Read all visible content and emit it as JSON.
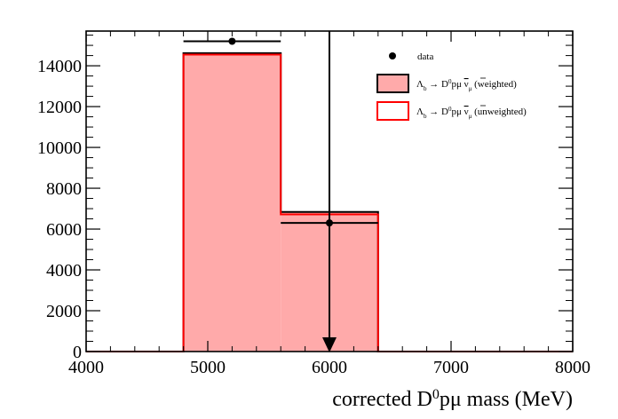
{
  "chart_data": {
    "type": "bar",
    "title": "",
    "xlabel": {
      "main": "corrected D",
      "sup": "0",
      "rest": "pμ mass (MeV)"
    },
    "ylabel": "",
    "xlim": [
      4000,
      8000
    ],
    "ylim": [
      0,
      15700
    ],
    "x_ticks": [
      "4000",
      "5000",
      "6000",
      "7000",
      "8000"
    ],
    "y_ticks": [
      "0",
      "2000",
      "4000",
      "6000",
      "8000",
      "10000",
      "12000",
      "14000"
    ],
    "bin_edges": [
      4000,
      4800,
      5600,
      6400,
      8000
    ],
    "series": [
      {
        "name": "Λ_b → D⁰pμ ν̅_μ (weighted)",
        "style": "filled-black-outline",
        "fill": "#ffaaaa",
        "edge": "#000000",
        "values": [
          0,
          14620,
          6840,
          0
        ]
      },
      {
        "name": "Λ_b → D⁰pμ ν̅_μ (unweighted)",
        "style": "red-outline",
        "edge": "#ff0000",
        "values": [
          0,
          14550,
          6720,
          0
        ]
      },
      {
        "name": "data",
        "style": "points",
        "color": "#000000",
        "points": [
          {
            "x": 5200,
            "y": 15200,
            "xerr": 400
          },
          {
            "x": 6000,
            "y": 6300,
            "xerr": 400
          }
        ]
      }
    ],
    "annotation": {
      "type": "vertical-arrow",
      "x": 6000
    },
    "grid": false,
    "legend": {
      "placement": "top-right",
      "entries": [
        {
          "kind": "marker",
          "text": "data"
        },
        {
          "kind": "box-black",
          "prefix": "Λ",
          "sub": "b",
          "mid": " → D",
          "sup": "0",
          "tail": "pμ ",
          "nu": "ν",
          "nusub": "μ",
          "suffix": " (weighted)"
        },
        {
          "kind": "box-red",
          "prefix": "Λ",
          "sub": "b",
          "mid": " → D",
          "sup": "0",
          "tail": "pμ ",
          "nu": "ν",
          "nusub": "μ",
          "suffix": " (unweighted)"
        }
      ]
    }
  }
}
